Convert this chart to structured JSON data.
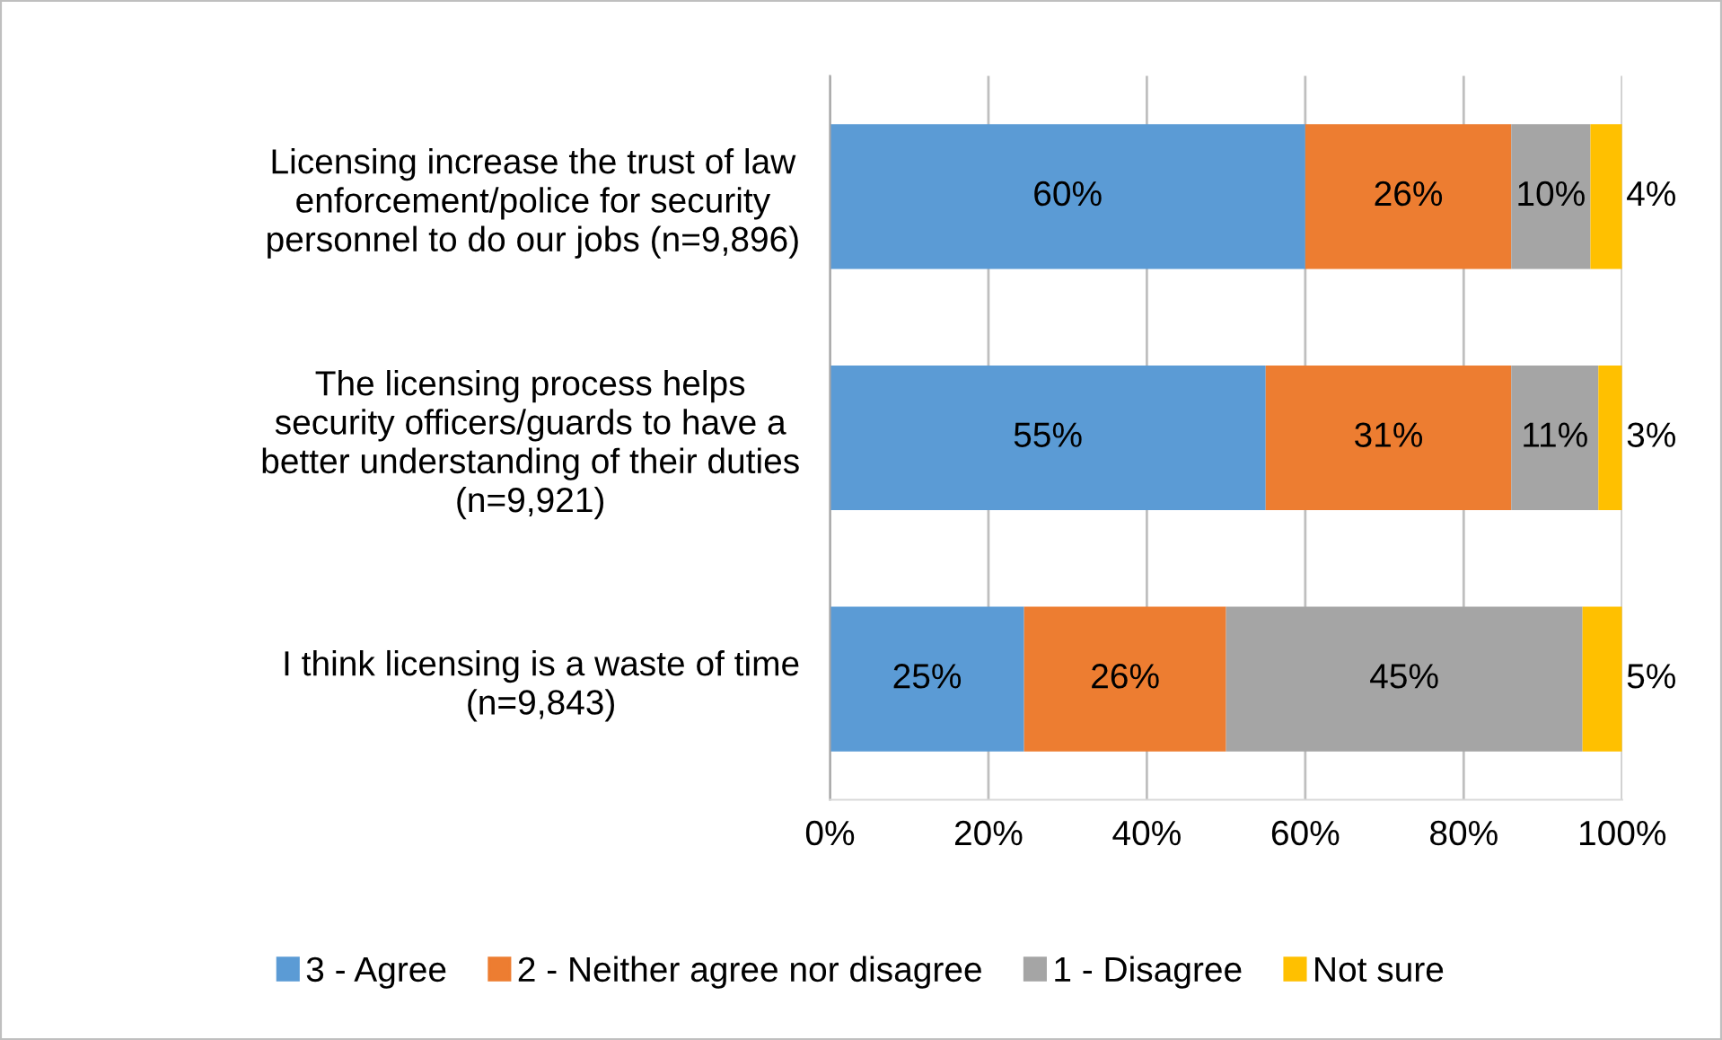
{
  "chart_data": {
    "type": "bar",
    "orientation": "horizontal",
    "stacked": true,
    "categories": [
      "Licensing increase the trust of law\nenforcement/police for security\npersonnel to do our jobs (n=9,896)",
      "The licensing process helps\nsecurity officers/guards to have a\nbetter understanding of their duties\n(n=9,921)",
      "I think licensing is a waste of time\n(n=9,843)"
    ],
    "series": [
      {
        "name": "3 - Agree",
        "color": "#5b9bd5",
        "values": [
          60,
          55,
          24.5
        ],
        "value_labels": [
          "60%",
          "55%",
          "25%"
        ]
      },
      {
        "name": "2 - Neither agree nor disagree",
        "color": "#ed7d31",
        "values": [
          26,
          31,
          25.5
        ],
        "value_labels": [
          "26%",
          "31%",
          "26%"
        ]
      },
      {
        "name": "1 - Disagree",
        "color": "#a5a5a5",
        "values": [
          10,
          11,
          45
        ],
        "value_labels": [
          "10%",
          "11%",
          "45%"
        ]
      },
      {
        "name": "Not sure",
        "color": "#ffc000",
        "values": [
          4,
          3,
          5
        ],
        "value_labels": [
          "4%",
          "3%",
          "5%"
        ]
      }
    ],
    "xlim": [
      0,
      100
    ],
    "xticks": [
      {
        "value": 0,
        "label": "0%"
      },
      {
        "value": 20,
        "label": "20%"
      },
      {
        "value": 40,
        "label": "40%"
      },
      {
        "value": 60,
        "label": "60%"
      },
      {
        "value": 80,
        "label": "80%"
      },
      {
        "value": 100,
        "label": "100%"
      }
    ],
    "grid": "x",
    "legend": "bottom"
  }
}
